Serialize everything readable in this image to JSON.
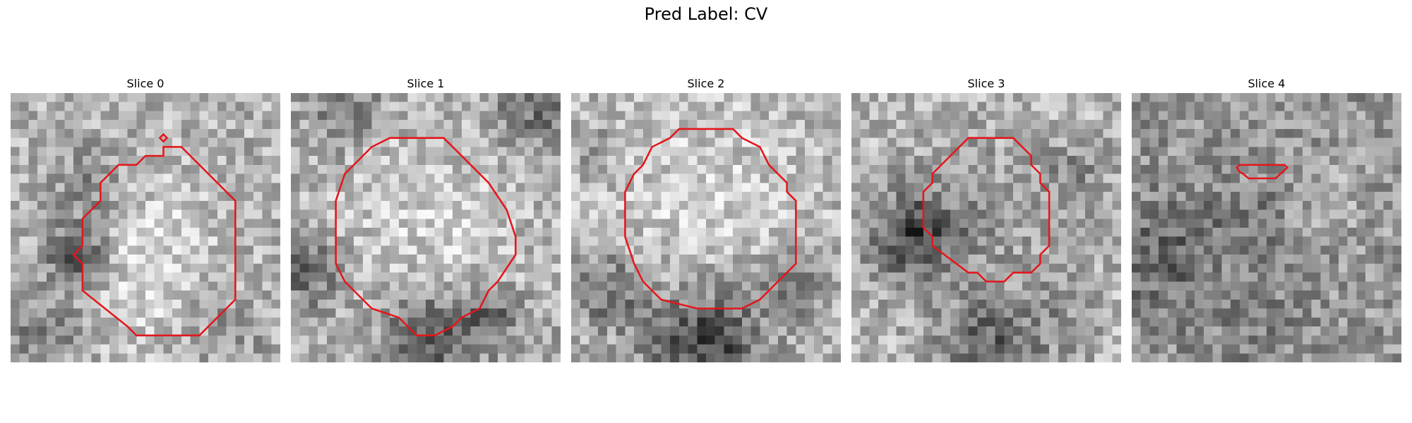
{
  "title": "Pred Label: CV",
  "grid_size": 30,
  "outline_color": "#e4161b",
  "panels": [
    {
      "title": "Slice 0",
      "seed": 11,
      "base": 178,
      "blobs": [
        {
          "cx": 14.0,
          "cy": 18.0,
          "r": 6.5,
          "d": 45
        },
        {
          "cx": 7.5,
          "cy": 18.0,
          "r": 2.6,
          "d": -115
        },
        {
          "cx": 4.0,
          "cy": 26.0,
          "r": 3.0,
          "d": -55
        },
        {
          "cx": 24.0,
          "cy": 26.0,
          "r": 3.5,
          "d": -30
        },
        {
          "cx": 9.0,
          "cy": 10.0,
          "r": 3.0,
          "d": -55
        }
      ],
      "contour": [
        [
          17,
          6
        ],
        [
          19,
          6
        ],
        [
          25,
          12
        ],
        [
          25,
          23
        ],
        [
          21,
          27
        ],
        [
          14,
          27
        ],
        [
          13,
          26
        ],
        [
          8,
          22
        ],
        [
          8,
          19
        ],
        [
          7,
          18
        ],
        [
          8,
          17
        ],
        [
          8,
          14
        ],
        [
          10,
          12
        ],
        [
          10,
          10
        ],
        [
          12,
          8
        ],
        [
          14,
          8
        ],
        [
          15,
          7
        ],
        [
          17,
          7
        ]
      ],
      "extra_contours": [
        [
          [
            16.6,
            5
          ],
          [
            17.0,
            4.6
          ],
          [
            17.4,
            5
          ],
          [
            17.0,
            5.4
          ]
        ]
      ]
    },
    {
      "title": "Slice 1",
      "seed": 23,
      "base": 168,
      "blobs": [
        {
          "cx": 15.0,
          "cy": 15.5,
          "r": 9.5,
          "d": 40
        },
        {
          "cx": 15.0,
          "cy": 27.0,
          "r": 3.5,
          "d": -95
        },
        {
          "cx": 2.0,
          "cy": 20.0,
          "r": 3.0,
          "d": -70
        },
        {
          "cx": 6.0,
          "cy": 2.0,
          "r": 2.5,
          "d": -60
        },
        {
          "cx": 27.0,
          "cy": 2.0,
          "r": 3.0,
          "d": -60
        },
        {
          "cx": 22.0,
          "cy": 25.0,
          "r": 2.5,
          "d": -80
        }
      ],
      "contour": [
        [
          11,
          5
        ],
        [
          17,
          5
        ],
        [
          19,
          7
        ],
        [
          22,
          10
        ],
        [
          24,
          13
        ],
        [
          25,
          16
        ],
        [
          25,
          18
        ],
        [
          23,
          21
        ],
        [
          22,
          22
        ],
        [
          21,
          24
        ],
        [
          19,
          25
        ],
        [
          18,
          26
        ],
        [
          16,
          27
        ],
        [
          14,
          27
        ],
        [
          12,
          25
        ],
        [
          9,
          24
        ],
        [
          6,
          21
        ],
        [
          5,
          19
        ],
        [
          5,
          12
        ],
        [
          6,
          9
        ],
        [
          8,
          7
        ],
        [
          9,
          6
        ]
      ]
    },
    {
      "title": "Slice 2",
      "seed": 37,
      "base": 180,
      "blobs": [
        {
          "cx": 15.0,
          "cy": 12.5,
          "r": 8.5,
          "d": 30
        },
        {
          "cx": 15.0,
          "cy": 28.0,
          "r": 4.5,
          "d": -120
        },
        {
          "cx": 4.5,
          "cy": 22.0,
          "r": 3.0,
          "d": -70
        },
        {
          "cx": 25.0,
          "cy": 21.0,
          "r": 3.0,
          "d": -60
        },
        {
          "cx": 2.0,
          "cy": 6.0,
          "r": 2.0,
          "d": -30
        }
      ],
      "contour": [
        [
          12,
          4
        ],
        [
          18,
          4
        ],
        [
          19,
          5
        ],
        [
          21,
          6
        ],
        [
          22,
          8
        ],
        [
          24,
          10
        ],
        [
          24,
          11
        ],
        [
          25,
          12
        ],
        [
          25,
          19
        ],
        [
          23,
          21
        ],
        [
          21,
          23
        ],
        [
          19,
          24
        ],
        [
          18,
          24
        ],
        [
          14,
          24
        ],
        [
          10,
          23
        ],
        [
          8,
          21
        ],
        [
          7,
          19
        ],
        [
          6,
          16
        ],
        [
          6,
          11
        ],
        [
          7,
          9
        ],
        [
          8,
          8
        ],
        [
          9,
          6
        ],
        [
          11,
          5
        ]
      ]
    },
    {
      "title": "Slice 3",
      "seed": 53,
      "base": 182,
      "blobs": [
        {
          "cx": 15.0,
          "cy": 13.0,
          "r": 6.5,
          "d": -25
        },
        {
          "cx": 7.0,
          "cy": 16.0,
          "r": 3.5,
          "d": -110
        },
        {
          "cx": 15.0,
          "cy": 29.0,
          "r": 4.0,
          "d": -90
        },
        {
          "cx": 25.0,
          "cy": 9.0,
          "r": 2.5,
          "d": -40
        },
        {
          "cx": 23.0,
          "cy": 25.0,
          "r": 3.0,
          "d": -30
        }
      ],
      "contour": [
        [
          13,
          5
        ],
        [
          18,
          5
        ],
        [
          19,
          6
        ],
        [
          20,
          7
        ],
        [
          20,
          8
        ],
        [
          21,
          9
        ],
        [
          21,
          10
        ],
        [
          22,
          11
        ],
        [
          22,
          17
        ],
        [
          21,
          18
        ],
        [
          21,
          19
        ],
        [
          20,
          20
        ],
        [
          18,
          20
        ],
        [
          17,
          21
        ],
        [
          15,
          21
        ],
        [
          14,
          20
        ],
        [
          13,
          20
        ],
        [
          9,
          17
        ],
        [
          9,
          16
        ],
        [
          8,
          15
        ],
        [
          8,
          11
        ],
        [
          9,
          10
        ],
        [
          9,
          9
        ],
        [
          10,
          8
        ]
      ]
    },
    {
      "title": "Slice 4",
      "seed": 71,
      "base": 150,
      "blobs": [
        {
          "cx": 4.0,
          "cy": 18.0,
          "r": 5.0,
          "d": -45
        },
        {
          "cx": 14.0,
          "cy": 14.0,
          "r": 3.0,
          "d": -25
        },
        {
          "cx": 22.0,
          "cy": 12.0,
          "r": 4.0,
          "d": 20
        },
        {
          "cx": 14.0,
          "cy": 27.0,
          "r": 3.0,
          "d": -25
        }
      ],
      "contour": [
        [
          12,
          8
        ],
        [
          17,
          8
        ],
        [
          17.3,
          8.3
        ],
        [
          16,
          9.5
        ],
        [
          14,
          9.5
        ],
        [
          13,
          9.5
        ],
        [
          12.4,
          9
        ],
        [
          12,
          8.8
        ],
        [
          11.7,
          8.3
        ]
      ]
    }
  ]
}
